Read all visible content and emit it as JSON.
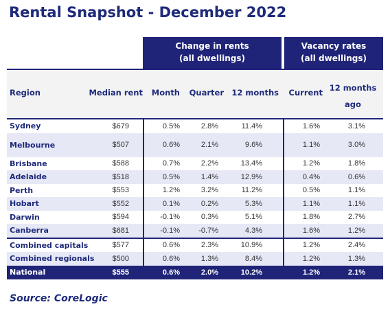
{
  "title": "Rental Snapshot - December 2022",
  "group_headers": {
    "change_line1": "Change in rents",
    "change_line2": "(all dwellings)",
    "vacancy_line1": "Vacancy rates",
    "vacancy_line2": "(all dwellings)"
  },
  "columns": {
    "region": "Region",
    "median_rent": "Median rent",
    "month": "Month",
    "quarter": "Quarter",
    "twelve_months": "12 months",
    "current": "Current",
    "twelve_months_ago_line1": "12 months",
    "twelve_months_ago_line2": "ago"
  },
  "rows": [
    {
      "region": "Sydney",
      "median": "$679",
      "month": "0.5%",
      "quarter": "2.8%",
      "twelve": "11.4%",
      "current": "1.6%",
      "ago": "3.1%"
    },
    {
      "region": "Melbourne",
      "median": "$507",
      "month": "0.6%",
      "quarter": "2.1%",
      "twelve": "9.6%",
      "current": "1.1%",
      "ago": "3.0%"
    },
    {
      "region": "Brisbane",
      "median": "$588",
      "month": "0.7%",
      "quarter": "2.2%",
      "twelve": "13.4%",
      "current": "1.2%",
      "ago": "1.8%"
    },
    {
      "region": "Adelaide",
      "median": "$518",
      "month": "0.5%",
      "quarter": "1.4%",
      "twelve": "12.9%",
      "current": "0.4%",
      "ago": "0.6%"
    },
    {
      "region": "Perth",
      "median": "$553",
      "month": "1.2%",
      "quarter": "3.2%",
      "twelve": "11.2%",
      "current": "0.5%",
      "ago": "1.1%"
    },
    {
      "region": "Hobart",
      "median": "$552",
      "month": "0.1%",
      "quarter": "0.2%",
      "twelve": "5.3%",
      "current": "1.1%",
      "ago": "1.1%"
    },
    {
      "region": "Darwin",
      "median": "$594",
      "month": "-0.1%",
      "quarter": "0.3%",
      "twelve": "5.1%",
      "current": "1.8%",
      "ago": "2.7%"
    },
    {
      "region": "Canberra",
      "median": "$681",
      "month": "-0.1%",
      "quarter": "-0.7%",
      "twelve": "4.3%",
      "current": "1.6%",
      "ago": "1.2%"
    },
    {
      "region": "Combined capitals",
      "median": "$577",
      "month": "0.6%",
      "quarter": "2.3%",
      "twelve": "10.9%",
      "current": "1.2%",
      "ago": "2.4%"
    },
    {
      "region": "Combined regionals",
      "median": "$500",
      "month": "0.6%",
      "quarter": "1.3%",
      "twelve": "8.4%",
      "current": "1.2%",
      "ago": "1.3%"
    },
    {
      "region": "National",
      "median": "$555",
      "month": "0.6%",
      "quarter": "2.0%",
      "twelve": "10.2%",
      "current": "1.2%",
      "ago": "2.1%"
    }
  ],
  "source": "Source: CoreLogic",
  "colors": {
    "navy": "#1f2478",
    "row_shade": "#e6e8f6",
    "header_gray": "#f3f3f3"
  }
}
